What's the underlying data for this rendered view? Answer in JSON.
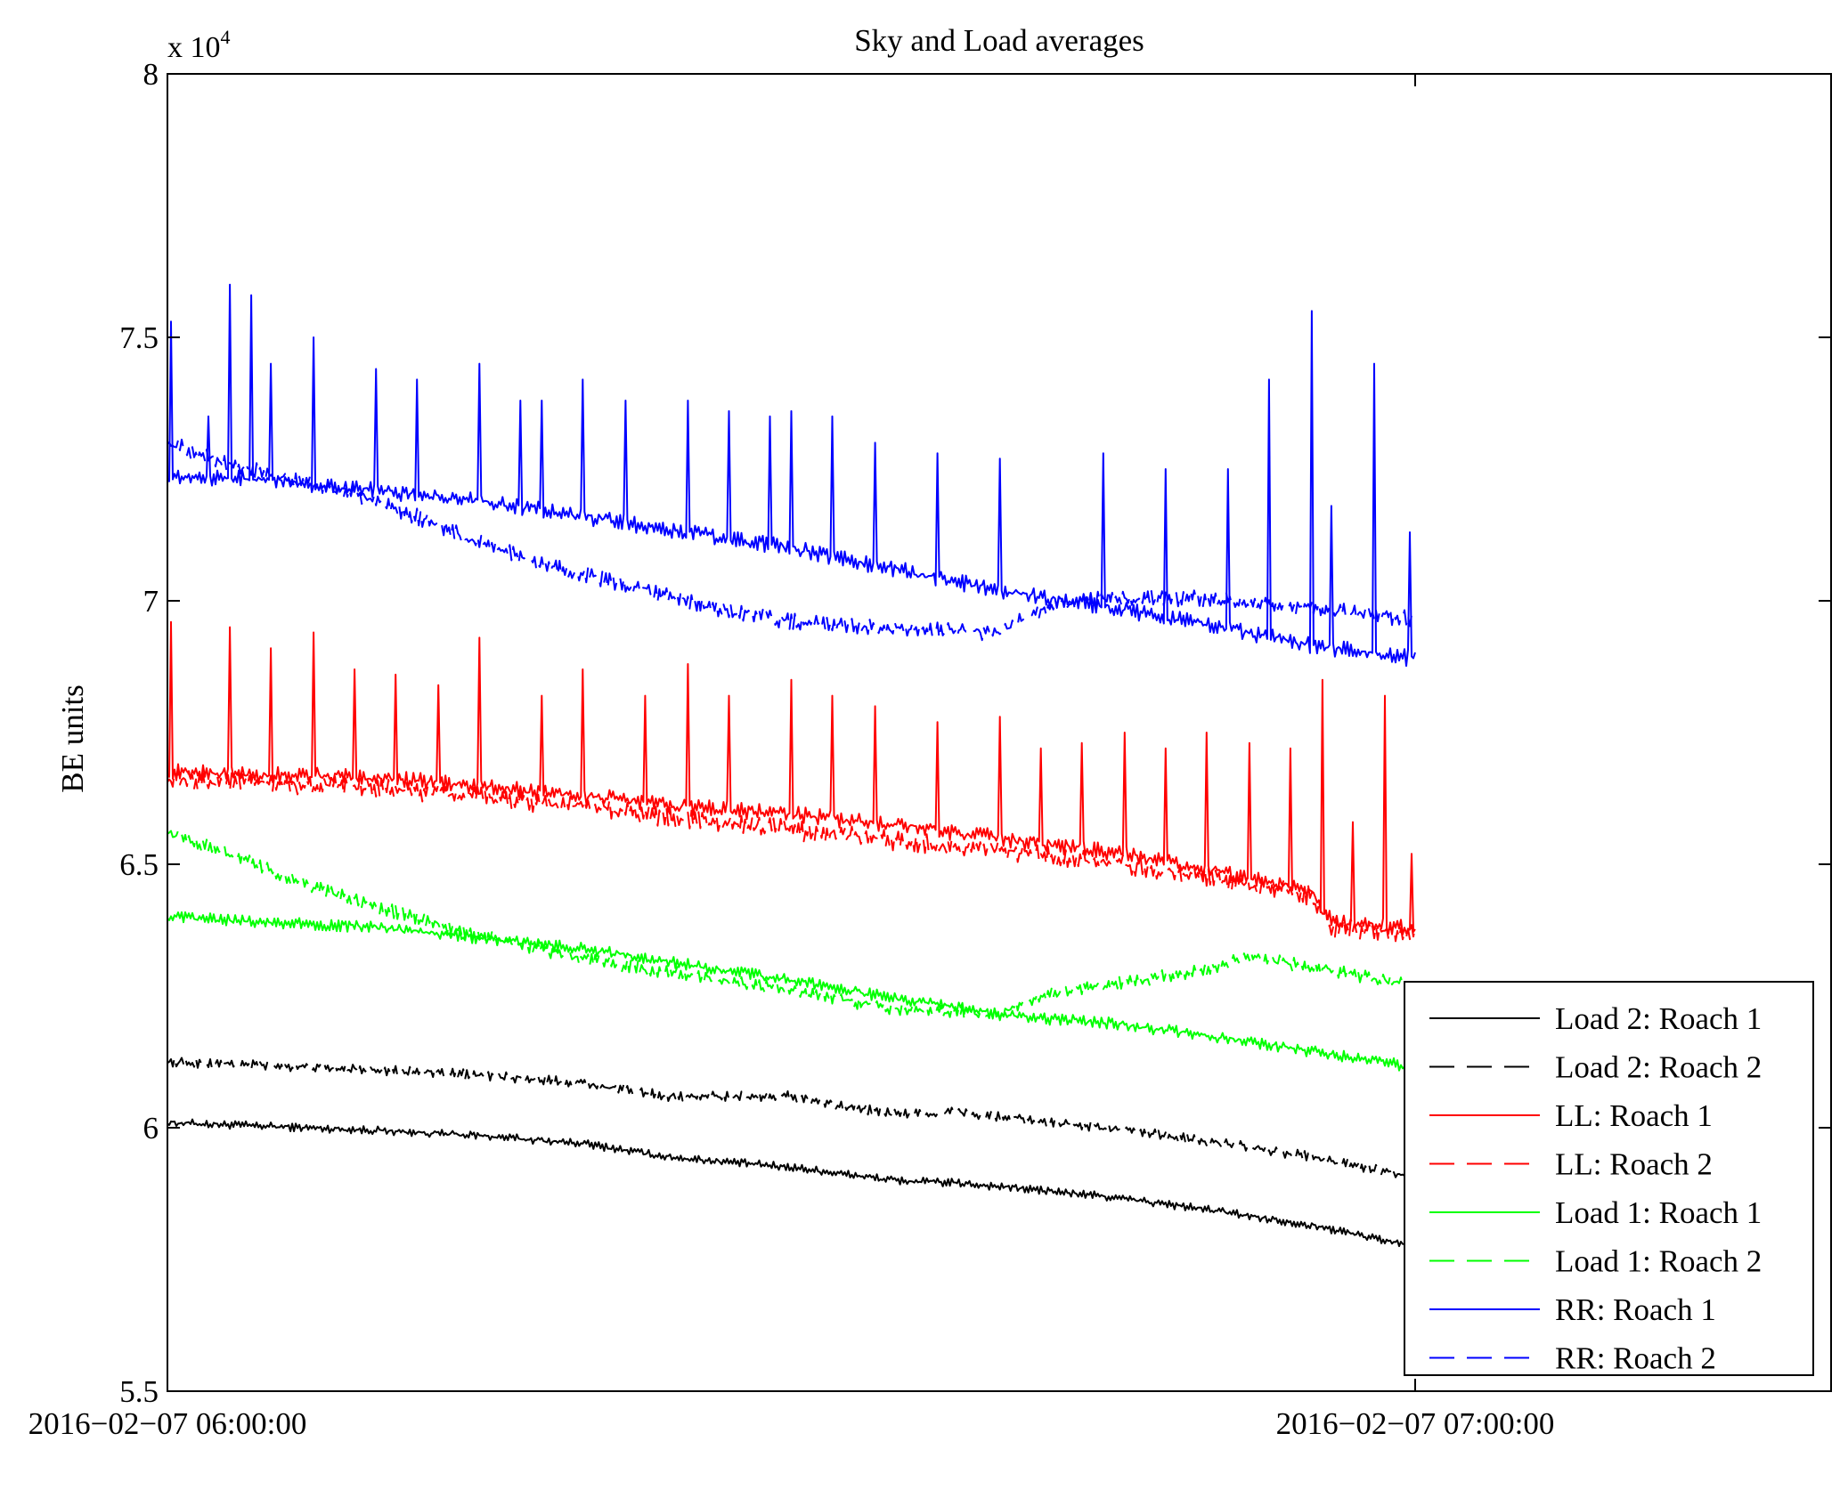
{
  "chart_data": {
    "type": "line",
    "title": "Sky and Load averages",
    "xlabel": "",
    "ylabel": "BE units",
    "y_multiplier_label": "x 10",
    "y_multiplier_exponent": "4",
    "x_range_minutes": [
      0,
      80
    ],
    "ylim": [
      5.5,
      8
    ],
    "y_ticks": [
      5.5,
      6,
      6.5,
      7,
      7.5,
      8
    ],
    "y_tick_labels": [
      "5.5",
      "6",
      "6.5",
      "7",
      "7.5",
      "8"
    ],
    "x_ticks_minutes": [
      0,
      60
    ],
    "x_tick_labels": [
      "2016−02−07 06:00:00",
      "2016−02−07 07:00:00"
    ],
    "data_x_end_minutes": 60,
    "legend_position": "lower-right",
    "series": [
      {
        "name": "Load 2: Roach 1",
        "color": "#000000",
        "dash": "solid",
        "x": [
          0,
          10,
          15,
          20,
          24,
          30,
          35,
          38,
          41,
          45,
          50,
          55,
          60
        ],
        "y": [
          6.01,
          5.995,
          5.985,
          5.97,
          5.945,
          5.925,
          5.9,
          5.895,
          5.885,
          5.87,
          5.845,
          5.815,
          5.775
        ],
        "noise": 0.005,
        "spikes": []
      },
      {
        "name": "Load 2: Roach 2",
        "color": "#000000",
        "dash": "dash",
        "x": [
          0,
          10,
          15,
          20,
          24,
          30,
          35,
          38,
          45,
          50,
          55,
          60
        ],
        "y": [
          6.125,
          6.11,
          6.1,
          6.085,
          6.06,
          6.06,
          6.025,
          6.03,
          6.0,
          5.975,
          5.945,
          5.905
        ],
        "noise": 0.006,
        "spikes": []
      },
      {
        "name": "LL: Roach 1",
        "color": "#ff0000",
        "dash": "solid",
        "x": [
          0,
          10,
          20,
          25,
          30,
          35,
          40,
          45,
          50,
          55,
          56,
          60
        ],
        "y": [
          6.675,
          6.665,
          6.63,
          6.61,
          6.595,
          6.575,
          6.55,
          6.525,
          6.49,
          6.45,
          6.39,
          6.38
        ],
        "noise": 0.01,
        "spikes": [
          [
            0.2,
            6.96
          ],
          [
            3,
            6.95
          ],
          [
            5,
            6.91
          ],
          [
            7,
            6.94
          ],
          [
            9,
            6.87
          ],
          [
            11,
            6.86
          ],
          [
            13,
            6.84
          ],
          [
            15,
            6.93
          ],
          [
            18,
            6.82
          ],
          [
            20,
            6.87
          ],
          [
            23,
            6.82
          ],
          [
            25,
            6.88
          ],
          [
            27,
            6.82
          ],
          [
            30,
            6.85
          ],
          [
            32,
            6.82
          ],
          [
            34,
            6.8
          ],
          [
            37,
            6.77
          ],
          [
            40,
            6.78
          ],
          [
            42,
            6.72
          ],
          [
            44,
            6.73
          ],
          [
            46,
            6.75
          ],
          [
            48,
            6.72
          ],
          [
            50,
            6.75
          ],
          [
            52,
            6.73
          ],
          [
            54,
            6.72
          ],
          [
            55.5,
            6.85
          ],
          [
            57,
            6.58
          ],
          [
            58.5,
            6.82
          ],
          [
            59.8,
            6.52
          ]
        ]
      },
      {
        "name": "LL: Roach 2",
        "color": "#ff0000",
        "dash": "dash",
        "x": [
          0,
          10,
          20,
          25,
          30,
          35,
          40,
          45,
          50,
          55,
          56,
          60
        ],
        "y": [
          6.66,
          6.645,
          6.61,
          6.585,
          6.565,
          6.545,
          6.525,
          6.505,
          6.475,
          6.44,
          6.38,
          6.37
        ],
        "noise": 0.012,
        "spikes": []
      },
      {
        "name": "Load 1: Roach 1",
        "color": "#00ff00",
        "dash": "solid",
        "x": [
          0,
          5,
          10,
          15,
          20,
          25,
          30,
          35,
          40,
          41,
          45,
          50,
          55,
          60
        ],
        "y": [
          6.4,
          6.39,
          6.38,
          6.36,
          6.34,
          6.31,
          6.28,
          6.245,
          6.215,
          6.21,
          6.2,
          6.175,
          6.145,
          6.115
        ],
        "noise": 0.007,
        "spikes": []
      },
      {
        "name": "Load 1: Roach 2",
        "color": "#00ff00",
        "dash": "dash",
        "x": [
          0,
          3,
          6,
          10,
          15,
          20,
          25,
          30,
          35,
          40,
          42,
          45,
          50,
          52,
          55,
          60
        ],
        "y": [
          6.56,
          6.52,
          6.47,
          6.42,
          6.365,
          6.32,
          6.29,
          6.26,
          6.225,
          6.215,
          6.25,
          6.27,
          6.3,
          6.325,
          6.305,
          6.27
        ],
        "noise": 0.008,
        "spikes": []
      },
      {
        "name": "RR: Roach 1",
        "color": "#0000ff",
        "dash": "solid",
        "x": [
          0,
          5,
          10,
          15,
          20,
          25,
          30,
          35,
          40,
          45,
          50,
          55,
          60
        ],
        "y": [
          7.235,
          7.23,
          7.21,
          7.19,
          7.16,
          7.13,
          7.1,
          7.06,
          7.02,
          6.99,
          6.955,
          6.915,
          6.89
        ],
        "noise": 0.01,
        "spikes": [
          [
            0.2,
            7.53
          ],
          [
            2,
            7.35
          ],
          [
            3,
            7.6
          ],
          [
            4,
            7.58
          ],
          [
            5,
            7.45
          ],
          [
            7,
            7.5
          ],
          [
            10,
            7.44
          ],
          [
            12,
            7.42
          ],
          [
            15,
            7.45
          ],
          [
            17,
            7.38
          ],
          [
            18,
            7.38
          ],
          [
            20,
            7.42
          ],
          [
            22,
            7.38
          ],
          [
            25,
            7.38
          ],
          [
            27,
            7.36
          ],
          [
            29,
            7.35
          ],
          [
            30,
            7.36
          ],
          [
            32,
            7.35
          ],
          [
            34,
            7.3
          ],
          [
            37,
            7.28
          ],
          [
            40,
            7.27
          ],
          [
            45,
            7.28
          ],
          [
            48,
            7.25
          ],
          [
            51,
            7.25
          ],
          [
            53,
            7.42
          ],
          [
            55,
            7.55
          ],
          [
            56,
            7.18
          ],
          [
            58,
            7.45
          ],
          [
            59.7,
            7.13
          ]
        ]
      },
      {
        "name": "RR: Roach 2",
        "color": "#0000ff",
        "dash": "dash",
        "x": [
          0,
          3,
          6,
          9,
          12,
          15,
          18,
          21,
          24,
          27,
          30,
          35,
          40,
          42,
          45,
          50,
          55,
          60
        ],
        "y": [
          7.3,
          7.26,
          7.23,
          7.2,
          7.16,
          7.11,
          7.07,
          7.04,
          7.01,
          6.98,
          6.96,
          6.945,
          6.94,
          6.985,
          7.005,
          7.005,
          6.985,
          6.965
        ],
        "noise": 0.01,
        "spikes": []
      }
    ]
  }
}
